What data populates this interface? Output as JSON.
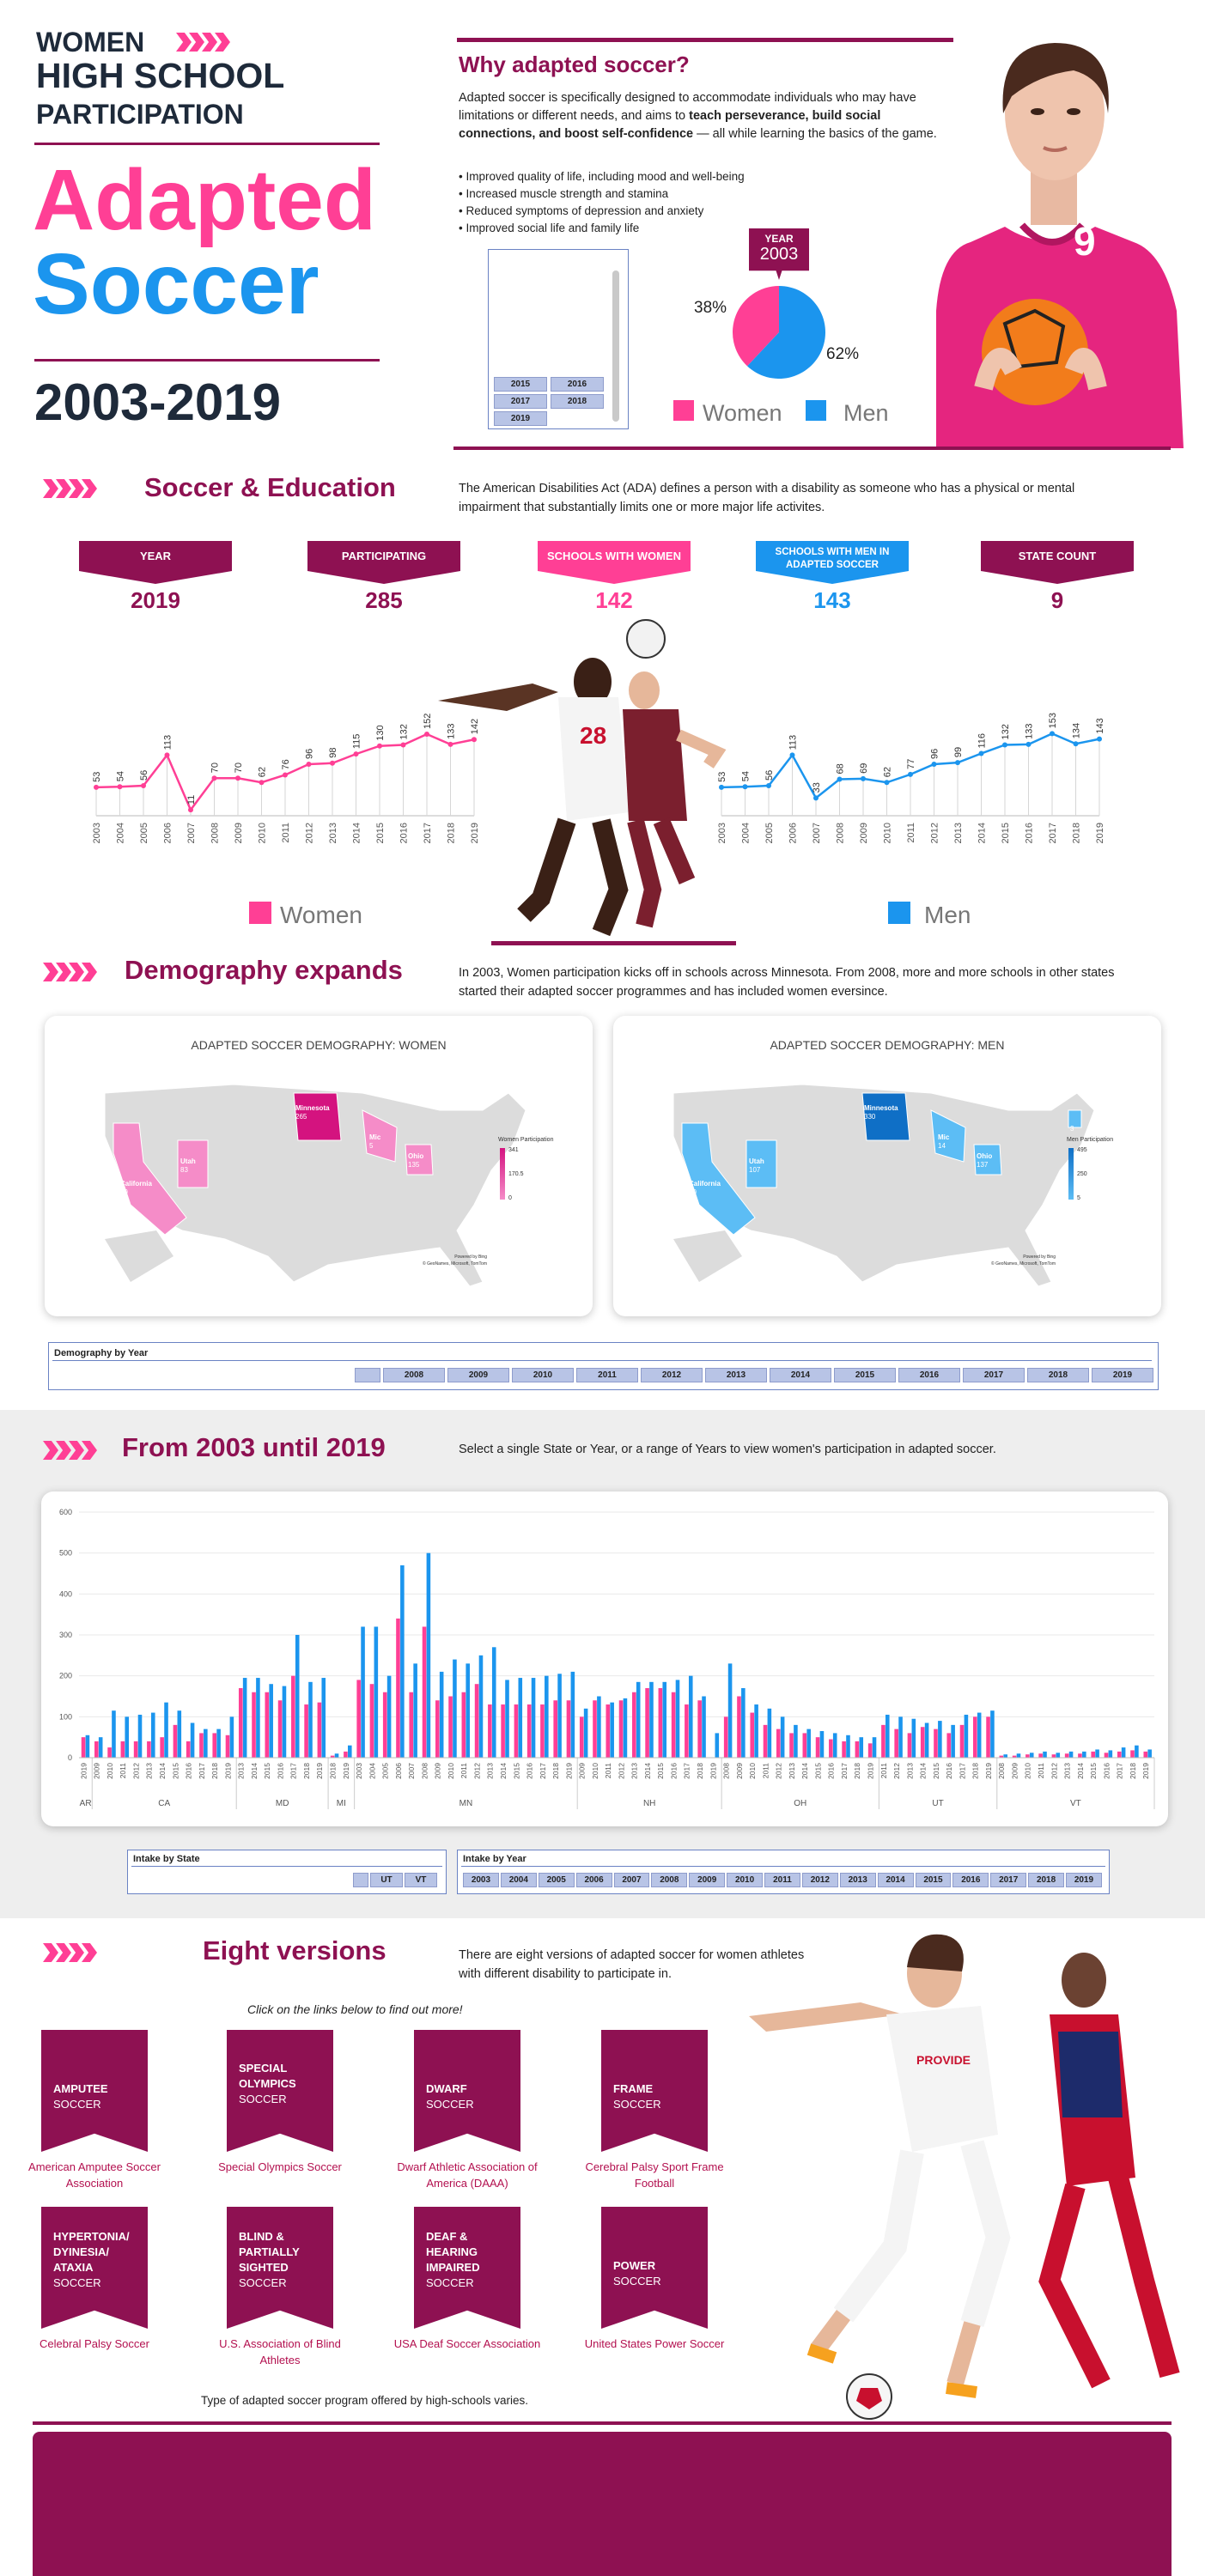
{
  "header": {
    "title_women": "WOMEN",
    "title_line2": "HIGH SCHOOL",
    "title_line3": "PARTICIPATION",
    "title_adapted": "Adapted",
    "title_soccer": "Soccer",
    "years": "2003-2019"
  },
  "why": {
    "heading": "Why adapted soccer?",
    "text_a": "Adapted soccer is specifically designed to accommodate individuals who may have limitations or different needs, and aims to ",
    "text_bold": "teach perseverance, build social connections, and boost self-confidence",
    "text_b": " — all while learning the basics of the game.",
    "bullets": [
      "Improved quality of life, including mood and well-being",
      "Increased muscle strength and stamina",
      "Reduced symptoms of depression and anxiety",
      "Improved social life and family life"
    ]
  },
  "year_slicer": {
    "buttons": [
      "2015",
      "2016",
      "2017",
      "2018",
      "2019"
    ]
  },
  "pie": {
    "year_label": "YEAR",
    "year": "2003",
    "women_pct": "38%",
    "men_pct": "62%",
    "women_value": 38,
    "men_value": 62,
    "legend_women": "Women",
    "legend_men": "Men",
    "colors": {
      "women": "#ff3f95",
      "men": "#1b95ee"
    }
  },
  "education": {
    "heading": "Soccer & Education",
    "text": "The American Disabilities Act (ADA) defines a person with a disability as someone who has a physical or mental impairment that substantially limits one or more major life activites."
  },
  "stats": [
    {
      "label": "YEAR",
      "value": "2019",
      "color": "#8e1152"
    },
    {
      "label": "PARTICIPATING",
      "value": "285",
      "color": "#8e1152"
    },
    {
      "label": "SCHOOLS WITH WOMEN",
      "value": "142",
      "color": "#ff3f95"
    },
    {
      "label": "SCHOOLS WITH MEN IN ADAPTED SOCCER",
      "value": "143",
      "color": "#1b95ee"
    },
    {
      "label": "STATE COUNT",
      "value": "9",
      "color": "#8e1152"
    }
  ],
  "demography": {
    "heading": "Demography expands",
    "text": "In 2003, Women participation kicks off in schools across Minnesota. From 2008, more and more schools in other states started their adapted soccer programmes and has included women eversince.",
    "map_women_title": "ADAPTED SOCCER DEMOGRAPHY: WOMEN",
    "map_men_title": "ADAPTED SOCCER DEMOGRAPHY: MEN",
    "women_legend_title": "Women Participation",
    "women_legend_ticks": [
      "341",
      "170.5",
      "0"
    ],
    "men_legend_title": "Men Participation",
    "men_legend_ticks": [
      "495",
      "250",
      "5"
    ],
    "map_credit": "Powered by Bing\n© GeoNames, Microsoft, TomTom",
    "women_states": [
      {
        "name": "Minnesota",
        "value": "265"
      },
      {
        "name": "Utah",
        "value": "83"
      },
      {
        "name": "California",
        "value": "29"
      },
      {
        "name": "Ohio",
        "value": "135"
      },
      {
        "name": "Mic",
        "value": "5"
      }
    ],
    "men_states": [
      {
        "name": "Minnesota",
        "value": "330"
      },
      {
        "name": "Utah",
        "value": "107"
      },
      {
        "name": "California",
        "value": "50"
      },
      {
        "name": "Ohio",
        "value": "137"
      },
      {
        "name": "Mic",
        "value": "14"
      },
      {
        "name": "",
        "value": "3"
      }
    ],
    "slicer_title": "Demography by Year",
    "slicer_years": [
      "2008",
      "2009",
      "2010",
      "2011",
      "2012",
      "2013",
      "2014",
      "2015",
      "2016",
      "2017",
      "2018",
      "2019"
    ]
  },
  "from": {
    "heading": "From 2003 until 2019",
    "text": "Select a single State or Year, or a range of Years to view women's participation in adapted soccer.",
    "state_slicer_title": "Intake by State",
    "state_buttons": [
      "UT",
      "VT"
    ],
    "year_slicer_title": "Intake by Year",
    "year_buttons": [
      "2003",
      "2004",
      "2005",
      "2006",
      "2007",
      "2008",
      "2009",
      "2010",
      "2011",
      "2012",
      "2013",
      "2014",
      "2015",
      "2016",
      "2017",
      "2018",
      "2019"
    ]
  },
  "versions": {
    "heading": "Eight versions",
    "text": "There are eight versions of adapted soccer for women athletes with different disability to participate in.",
    "hint": "Click on the links below to find out more!",
    "items": [
      {
        "t1": "AMPUTEE",
        "t2": "",
        "t3": "SOCCER",
        "link": "American Amputee Soccer Association"
      },
      {
        "t1": "SPECIAL",
        "t2": "OLYMPICS",
        "t3": "SOCCER",
        "link": "Special Olympics Soccer"
      },
      {
        "t1": "DWARF",
        "t2": "",
        "t3": "SOCCER",
        "link": "Dwarf Athletic Association of America (DAAA)"
      },
      {
        "t1": "FRAME",
        "t2": "",
        "t3": "SOCCER",
        "link": "Cerebral Palsy Sport Frame Football"
      },
      {
        "t1": "HYPERTONIA/ DYINESIA/ ATAXIA",
        "t2": "",
        "t3": "SOCCER",
        "link": "Celebral Palsy Soccer"
      },
      {
        "t1": "BLIND & PARTIALLY SIGHTED",
        "t2": "",
        "t3": "SOCCER",
        "link": "U.S. Association of Blind Athletes"
      },
      {
        "t1": "DEAF & HEARING IMPAIRED",
        "t2": "",
        "t3": "SOCCER",
        "link": "USA Deaf Soccer Association"
      },
      {
        "t1": "POWER",
        "t2": "",
        "t3": "SOCCER",
        "link": "United States Power Soccer"
      }
    ],
    "footnote": "Type of adapted soccer program offered by high-schools varies."
  },
  "jersey": {
    "number": "9"
  },
  "chart_data": [
    {
      "type": "line",
      "name": "Women",
      "x": [
        "2003",
        "2004",
        "2005",
        "2006",
        "2007",
        "2008",
        "2009",
        "2010",
        "2011",
        "2012",
        "2013",
        "2014",
        "2015",
        "2016",
        "2017",
        "2018",
        "2019"
      ],
      "values": [
        53,
        54,
        56,
        113,
        11,
        70,
        70,
        62,
        76,
        96,
        98,
        115,
        130,
        132,
        152,
        133,
        142
      ],
      "color": "#ff3f95",
      "legend": "Women"
    },
    {
      "type": "line",
      "name": "Men",
      "x": [
        "2003",
        "2004",
        "2005",
        "2006",
        "2007",
        "2008",
        "2009",
        "2010",
        "2011",
        "2012",
        "2013",
        "2014",
        "2015",
        "2016",
        "2017",
        "2018",
        "2019"
      ],
      "values": [
        53,
        54,
        56,
        113,
        33,
        68,
        69,
        62,
        77,
        96,
        99,
        116,
        132,
        133,
        153,
        134,
        143
      ],
      "color": "#1b95ee",
      "legend": "Men"
    },
    {
      "type": "bar",
      "ylim": [
        0,
        600
      ],
      "yticks": [
        "0",
        "100",
        "200",
        "300",
        "400",
        "500",
        "600"
      ],
      "colors": {
        "women": "#ff3f95",
        "men": "#1b95ee"
      },
      "groups": [
        {
          "state": "AR",
          "years": [
            "2019"
          ],
          "women": [
            50
          ],
          "men": [
            55
          ]
        },
        {
          "state": "CA",
          "years": [
            "2009",
            "2010",
            "2011",
            "2012",
            "2013",
            "2014",
            "2015",
            "2016",
            "2017",
            "2018",
            "2019"
          ],
          "women": [
            40,
            25,
            40,
            40,
            40,
            50,
            80,
            40,
            60,
            60,
            55
          ],
          "men": [
            50,
            115,
            100,
            105,
            110,
            135,
            115,
            85,
            70,
            70,
            100
          ]
        },
        {
          "state": "MD",
          "years": [
            "2013",
            "2014",
            "2015",
            "2016",
            "2017",
            "2018",
            "2019"
          ],
          "women": [
            170,
            160,
            160,
            140,
            200,
            130,
            135
          ],
          "men": [
            195,
            195,
            180,
            175,
            300,
            185,
            195
          ]
        },
        {
          "state": "MI",
          "years": [
            "2018",
            "2019"
          ],
          "women": [
            5,
            15
          ],
          "men": [
            10,
            30
          ]
        },
        {
          "state": "MN",
          "years": [
            "2003",
            "2004",
            "2005",
            "2006",
            "2007",
            "2008",
            "2009",
            "2010",
            "2011",
            "2012",
            "2013",
            "2014",
            "2015",
            "2016",
            "2017",
            "2018",
            "2019"
          ],
          "women": [
            190,
            180,
            160,
            340,
            160,
            320,
            140,
            150,
            160,
            180,
            130,
            130,
            130,
            130,
            130,
            140,
            140
          ],
          "men": [
            320,
            320,
            200,
            470,
            230,
            500,
            210,
            240,
            230,
            250,
            270,
            190,
            195,
            195,
            200,
            205,
            210
          ]
        },
        {
          "state": "NH",
          "years": [
            "2009",
            "2010",
            "2011",
            "2012",
            "2013",
            "2014",
            "2015",
            "2016",
            "2017",
            "2018",
            "2019"
          ],
          "women": [
            100,
            140,
            130,
            140,
            160,
            170,
            170,
            160,
            130,
            140,
            0
          ],
          "men": [
            120,
            150,
            135,
            145,
            185,
            185,
            185,
            190,
            200,
            150,
            60
          ]
        },
        {
          "state": "OH",
          "years": [
            "2008",
            "2009",
            "2010",
            "2011",
            "2012",
            "2013",
            "2014",
            "2015",
            "2016",
            "2017",
            "2018",
            "2019"
          ],
          "women": [
            100,
            150,
            110,
            80,
            70,
            60,
            60,
            50,
            45,
            40,
            40,
            35
          ],
          "men": [
            230,
            170,
            130,
            120,
            100,
            80,
            70,
            65,
            60,
            55,
            50,
            50
          ]
        },
        {
          "state": "UT",
          "years": [
            "2011",
            "2012",
            "2013",
            "2014",
            "2015",
            "2016",
            "2017",
            "2018",
            "2019"
          ],
          "women": [
            80,
            70,
            60,
            75,
            70,
            60,
            80,
            100,
            100
          ],
          "men": [
            105,
            100,
            95,
            85,
            90,
            80,
            105,
            110,
            115
          ]
        },
        {
          "state": "VT",
          "years": [
            "2008",
            "2009",
            "2010",
            "2011",
            "2012",
            "2013",
            "2014",
            "2015",
            "2016",
            "2017",
            "2018",
            "2019"
          ],
          "women": [
            5,
            5,
            8,
            10,
            8,
            10,
            10,
            15,
            12,
            15,
            18,
            15
          ],
          "men": [
            8,
            10,
            12,
            15,
            12,
            15,
            15,
            20,
            18,
            25,
            30,
            20
          ]
        }
      ]
    }
  ]
}
